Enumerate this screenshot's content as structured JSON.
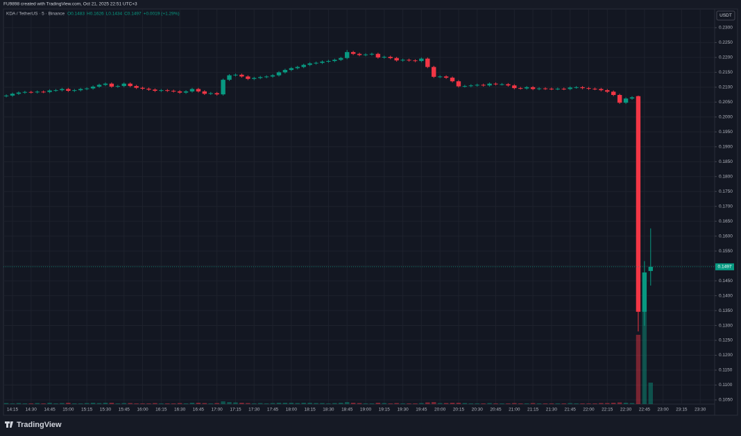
{
  "header": {
    "credit": "FU9898 created with TradingView.com, Oct 21, 2025 22:51 UTC+3",
    "symbol": "KDA / TetherUS · 5 · Binance",
    "ohlc": [
      "O0.1483",
      "H0.1626",
      "L0.1434",
      "C0.1497",
      "+0.0019 (+1.29%)"
    ],
    "currency": "USDT",
    "logo": "TradingView"
  },
  "chart_data": {
    "type": "candlestick",
    "up_color": "#089981",
    "down_color": "#f23645",
    "grid": true,
    "categories": [
      null,
      "14:15",
      null,
      null,
      "14:30",
      null,
      null,
      "14:45",
      null,
      null,
      "15:00",
      null,
      null,
      "15:15",
      null,
      null,
      "15:30",
      null,
      null,
      "15:45",
      null,
      null,
      "16:00",
      null,
      null,
      "16:15",
      null,
      null,
      "16:30",
      null,
      null,
      "16:45",
      null,
      null,
      "17:00",
      null,
      null,
      "17:15",
      null,
      null,
      "17:30",
      null,
      null,
      "17:45",
      null,
      null,
      "18:00",
      null,
      null,
      "18:15",
      null,
      null,
      "18:30",
      null,
      null,
      "18:45",
      null,
      null,
      "19:00",
      null,
      null,
      "19:15",
      null,
      null,
      "19:30",
      null,
      null,
      "19:45",
      null,
      null,
      "20:00",
      null,
      null,
      "20:15",
      null,
      null,
      "20:30",
      null,
      null,
      "20:45",
      null,
      null,
      "21:00",
      null,
      null,
      "21:15",
      null,
      null,
      "21:30",
      null,
      null,
      "21:45",
      null,
      null,
      "22:00",
      null,
      null,
      "22:15",
      null,
      null,
      "22:30",
      null,
      null,
      "22:45",
      null,
      null,
      "23:00",
      null,
      null,
      "23:15",
      null,
      null,
      "23:30"
    ],
    "open": [
      0.207,
      0.2072,
      0.2078,
      0.2082,
      0.2084,
      0.2083,
      0.2085,
      0.2084,
      0.2089,
      0.209,
      0.2094,
      0.2088,
      0.209,
      0.2094,
      0.2096,
      0.2102,
      0.2108,
      0.2112,
      0.2102,
      0.2104,
      0.2112,
      0.2104,
      0.2098,
      0.2095,
      0.2092,
      0.2088,
      0.209,
      0.2088,
      0.2086,
      0.2082,
      0.2086,
      0.2094,
      0.2086,
      0.2078,
      0.208,
      0.2076,
      0.2125,
      0.214,
      0.2142,
      0.2136,
      0.2128,
      0.2131,
      0.2134,
      0.2136,
      0.214,
      0.215,
      0.2158,
      0.2164,
      0.2168,
      0.2175,
      0.218,
      0.2182,
      0.2186,
      0.2188,
      0.2192,
      0.2198,
      0.2218,
      0.2212,
      0.2208,
      0.221,
      0.2212,
      0.22,
      0.2202,
      0.2198,
      0.219,
      0.2192,
      0.219,
      0.2188,
      0.2196,
      0.2168,
      0.2135,
      0.2136,
      0.2132,
      0.212,
      0.2103,
      0.2104,
      0.2106,
      0.2108,
      0.2106,
      0.2112,
      0.211,
      0.211,
      0.2106,
      0.2097,
      0.2096,
      0.21,
      0.2094,
      0.2096,
      0.2095,
      0.2094,
      0.2095,
      0.2094,
      0.2099,
      0.21,
      0.2097,
      0.2095,
      0.2094,
      0.209,
      0.2085,
      0.2074,
      0.2048,
      0.2062,
      0.207,
      0.1346,
      0.1483,
      null,
      null,
      null,
      null,
      null,
      null,
      null,
      null
    ],
    "high": [
      0.2076,
      0.2082,
      0.2086,
      0.2088,
      0.2088,
      0.2089,
      0.2089,
      0.2093,
      0.2094,
      0.2098,
      0.2098,
      0.2094,
      0.2098,
      0.21,
      0.2106,
      0.2112,
      0.2116,
      0.2116,
      0.2108,
      0.2116,
      0.2116,
      0.2108,
      0.2102,
      0.2099,
      0.2096,
      0.2094,
      0.2094,
      0.2092,
      0.209,
      0.209,
      0.2098,
      0.2098,
      0.209,
      0.2084,
      0.2084,
      0.2129,
      0.2144,
      0.2146,
      0.2146,
      0.214,
      0.2135,
      0.2138,
      0.214,
      0.2144,
      0.2154,
      0.2162,
      0.2168,
      0.2172,
      0.2179,
      0.2184,
      0.2186,
      0.219,
      0.2192,
      0.2196,
      0.2202,
      0.2225,
      0.2222,
      0.2216,
      0.2214,
      0.2216,
      0.2216,
      0.2206,
      0.2206,
      0.2202,
      0.2196,
      0.2196,
      0.2194,
      0.22,
      0.22,
      0.2172,
      0.214,
      0.214,
      0.2136,
      0.2124,
      0.2108,
      0.211,
      0.2112,
      0.2112,
      0.2116,
      0.2116,
      0.2114,
      0.2114,
      0.211,
      0.2101,
      0.2104,
      0.2104,
      0.21,
      0.21,
      0.2099,
      0.2099,
      0.2099,
      0.2103,
      0.2104,
      0.2104,
      0.2101,
      0.2099,
      0.2098,
      0.2094,
      0.2089,
      0.2078,
      0.2066,
      0.207,
      0.2072,
      0.1516,
      0.1626,
      null,
      null,
      null,
      null,
      null,
      null,
      null,
      null
    ],
    "low": [
      0.2066,
      0.2068,
      0.2074,
      0.2078,
      0.2079,
      0.2079,
      0.208,
      0.208,
      0.2085,
      0.2086,
      0.2084,
      0.2084,
      0.2086,
      0.209,
      0.2092,
      0.2098,
      0.2104,
      0.2098,
      0.2098,
      0.21,
      0.21,
      0.2094,
      0.2091,
      0.2088,
      0.2084,
      0.2084,
      0.2084,
      0.2082,
      0.2078,
      0.2078,
      0.2082,
      0.2082,
      0.2074,
      0.2074,
      0.2072,
      0.2072,
      0.2121,
      0.2136,
      0.2132,
      0.2124,
      0.2124,
      0.2127,
      0.213,
      0.2132,
      0.2136,
      0.2146,
      0.2154,
      0.216,
      0.2164,
      0.2171,
      0.2176,
      0.2178,
      0.2182,
      0.2184,
      0.2188,
      0.2194,
      0.2208,
      0.2204,
      0.2204,
      0.2206,
      0.2196,
      0.2196,
      0.2194,
      0.2186,
      0.2186,
      0.2186,
      0.2184,
      0.2184,
      0.2164,
      0.2131,
      0.2131,
      0.2128,
      0.2116,
      0.2099,
      0.2099,
      0.21,
      0.2102,
      0.2102,
      0.2102,
      0.2106,
      0.2106,
      0.2102,
      0.2093,
      0.2092,
      0.2092,
      0.209,
      0.209,
      0.2091,
      0.209,
      0.209,
      0.209,
      0.209,
      0.2095,
      0.2093,
      0.2091,
      0.209,
      0.2086,
      0.2081,
      0.207,
      0.2044,
      0.2044,
      0.2058,
      0.128,
      0.1299,
      0.1434,
      null,
      null,
      null,
      null,
      null,
      null,
      null,
      null
    ],
    "close": [
      0.2072,
      0.2078,
      0.2082,
      0.2084,
      0.2083,
      0.2085,
      0.2084,
      0.2089,
      0.209,
      0.2094,
      0.2088,
      0.209,
      0.2094,
      0.2096,
      0.2102,
      0.2108,
      0.2112,
      0.2102,
      0.2104,
      0.2112,
      0.2104,
      0.2098,
      0.2095,
      0.2092,
      0.2088,
      0.209,
      0.2088,
      0.2086,
      0.2082,
      0.2086,
      0.2094,
      0.2086,
      0.2078,
      0.208,
      0.2076,
      0.2125,
      0.214,
      0.2142,
      0.2136,
      0.2128,
      0.2131,
      0.2134,
      0.2136,
      0.214,
      0.215,
      0.2158,
      0.2164,
      0.2168,
      0.2175,
      0.218,
      0.2182,
      0.2186,
      0.2188,
      0.2192,
      0.2198,
      0.2218,
      0.2212,
      0.2208,
      0.221,
      0.2212,
      0.22,
      0.2202,
      0.2198,
      0.219,
      0.2192,
      0.219,
      0.2188,
      0.2196,
      0.2168,
      0.2135,
      0.2136,
      0.2132,
      0.212,
      0.2103,
      0.2104,
      0.2106,
      0.2108,
      0.2106,
      0.2112,
      0.211,
      0.211,
      0.2106,
      0.2097,
      0.2096,
      0.21,
      0.2094,
      0.2096,
      0.2095,
      0.2094,
      0.2095,
      0.2094,
      0.2099,
      0.21,
      0.2097,
      0.2095,
      0.2094,
      0.209,
      0.2085,
      0.2074,
      0.2048,
      0.2062,
      0.2066,
      0.1346,
      0.1478,
      0.1497,
      null,
      null,
      null,
      null,
      null,
      null,
      null,
      null
    ],
    "volume": [
      1.5,
      1,
      1.5,
      1,
      1,
      1.5,
      1,
      2,
      1,
      1.5,
      2,
      1,
      1,
      1.5,
      2,
      1.5,
      2,
      2,
      1,
      1.5,
      1.5,
      1,
      1,
      1,
      1.5,
      1,
      1,
      1,
      1.5,
      1,
      2,
      2,
      1.5,
      1,
      1.5,
      4,
      3,
      2.5,
      2,
      1.5,
      1,
      1.5,
      1,
      1.5,
      2,
      2,
      2,
      1.5,
      2,
      2,
      1.5,
      1.5,
      1,
      1.5,
      2,
      3,
      2,
      1.5,
      1,
      1,
      2,
      1.5,
      1,
      1.5,
      1,
      1,
      1,
      1.5,
      2.5,
      3,
      1.5,
      1.5,
      2,
      2,
      1.5,
      1,
      1,
      1,
      1.5,
      1,
      1,
      1,
      1.5,
      1,
      1,
      1.5,
      1,
      1,
      1,
      1,
      1,
      1.5,
      1,
      1,
      1,
      1,
      1.5,
      1.5,
      2,
      2.5,
      2,
      1.5,
      100,
      136,
      31,
      null,
      null,
      null,
      null,
      null,
      null,
      null,
      null
    ],
    "ylim": [
      0.1001,
      0.2351
    ],
    "yticks": [
      {
        "value": 0.105,
        "label": "0.1050"
      },
      {
        "value": 0.11,
        "label": "0.1100"
      },
      {
        "value": 0.115,
        "label": "0.1150"
      },
      {
        "value": 0.12,
        "label": "0.1200"
      },
      {
        "value": 0.125,
        "label": "0.1250"
      },
      {
        "value": 0.13,
        "label": "0.1300"
      },
      {
        "value": 0.135,
        "label": "0.1350"
      },
      {
        "value": 0.14,
        "label": "0.1400"
      },
      {
        "value": 0.145,
        "label": "0.1450"
      },
      {
        "value": 0.15,
        "label": "0.1500"
      },
      {
        "value": 0.155,
        "label": "0.1550"
      },
      {
        "value": 0.16,
        "label": "0.1600"
      },
      {
        "value": 0.165,
        "label": "0.1650"
      },
      {
        "value": 0.17,
        "label": "0.1700"
      },
      {
        "value": 0.175,
        "label": "0.1750"
      },
      {
        "value": 0.18,
        "label": "0.1800"
      },
      {
        "value": 0.185,
        "label": "0.1850"
      },
      {
        "value": 0.19,
        "label": "0.1900"
      },
      {
        "value": 0.195,
        "label": "0.1950"
      },
      {
        "value": 0.2,
        "label": "0.2000"
      },
      {
        "value": 0.205,
        "label": "0.2050"
      },
      {
        "value": 0.21,
        "label": "0.2100"
      },
      {
        "value": 0.215,
        "label": "0.2150"
      },
      {
        "value": 0.22,
        "label": "0.2200"
      },
      {
        "value": 0.225,
        "label": "0.2250"
      },
      {
        "value": 0.23,
        "label": "0.2300"
      }
    ]
  }
}
